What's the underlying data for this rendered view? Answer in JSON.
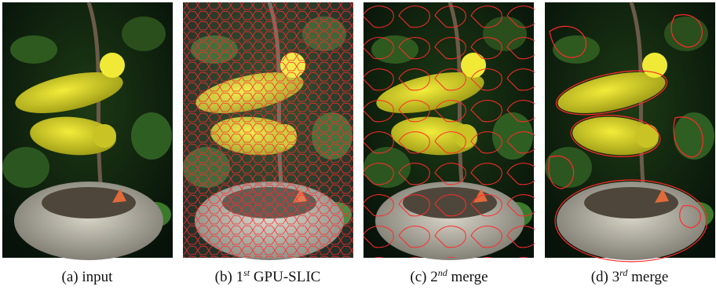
{
  "figure": {
    "panels": [
      {
        "label": "(a)",
        "text": "input"
      },
      {
        "label": "(b)",
        "number": "1",
        "sup": "st",
        "text": "GPU-SLIC"
      },
      {
        "label": "(c)",
        "number": "2",
        "sup": "nd",
        "text": "merge"
      },
      {
        "label": "(d)",
        "number": "3",
        "sup": "rd",
        "text": "merge"
      }
    ]
  }
}
